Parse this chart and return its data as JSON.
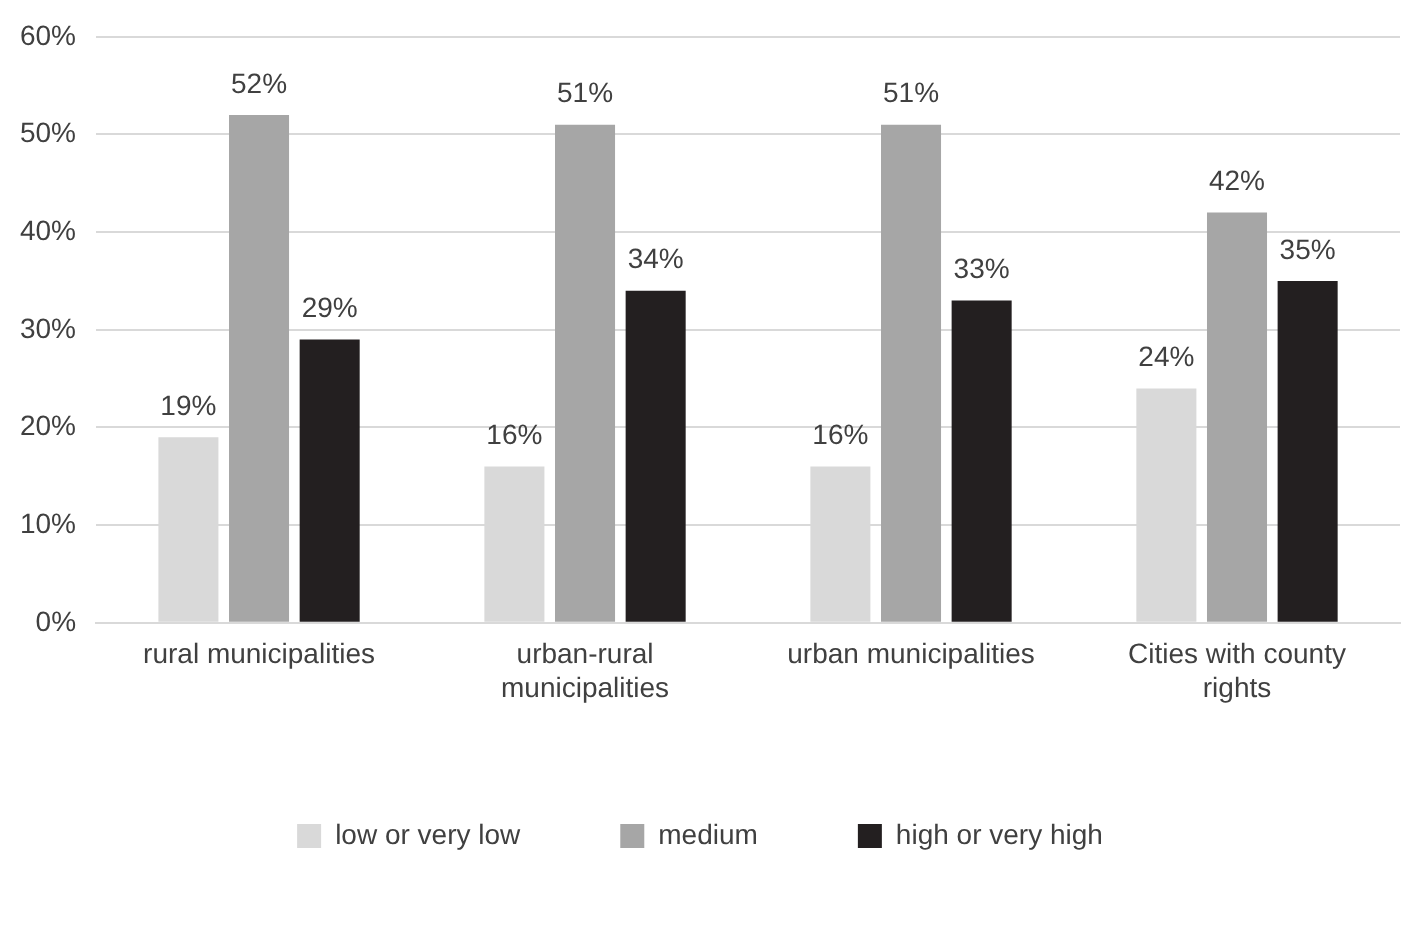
{
  "chart_data": {
    "type": "bar",
    "categories": [
      "rural municipalities",
      "urban-rural municipalities",
      "urban municipalities",
      "Cities with county rights"
    ],
    "series": [
      {
        "name": "low or very low",
        "color": "#d9d9d9",
        "values": [
          19,
          16,
          16,
          24
        ],
        "value_labels": [
          "19%",
          "16%",
          "16%",
          "24%"
        ]
      },
      {
        "name": "medium",
        "color": "#a6a6a6",
        "values": [
          52,
          51,
          51,
          42
        ],
        "value_labels": [
          "52%",
          "51%",
          "51%",
          "42%"
        ]
      },
      {
        "name": "high or very high",
        "color": "#231f20",
        "values": [
          29,
          34,
          33,
          35
        ],
        "value_labels": [
          "29%",
          "34%",
          "33%",
          "35%"
        ]
      }
    ],
    "ylim": [
      0,
      60
    ],
    "yticks": [
      {
        "value": 0,
        "label": "0%"
      },
      {
        "value": 10,
        "label": "10%"
      },
      {
        "value": 20,
        "label": "20%"
      },
      {
        "value": 30,
        "label": "30%"
      },
      {
        "value": 40,
        "label": "40%"
      },
      {
        "value": 50,
        "label": "50%"
      },
      {
        "value": 60,
        "label": "60%"
      }
    ],
    "grid": "y",
    "legend": "bottom"
  }
}
